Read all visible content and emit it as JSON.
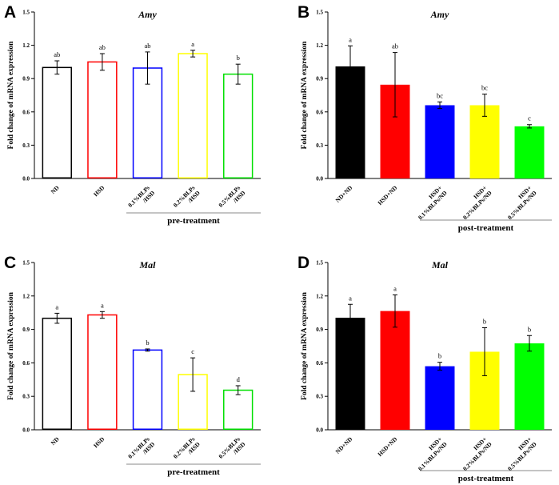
{
  "chart_data": [
    {
      "type": "bar",
      "panel": "A",
      "title": "Amy",
      "ylabel": "Fold change of mRNA expression",
      "ylim": [
        0,
        1.5
      ],
      "yticks": [
        "0.0",
        "0.3",
        "0.6",
        "0.9",
        "1.2",
        "1.5"
      ],
      "xlabel": "pre-treatment",
      "style": "outline",
      "categories": [
        [
          "ND"
        ],
        [
          "HSD"
        ],
        [
          "0.1%BLPs",
          "/HSD"
        ],
        [
          "0.2%BLPs",
          "/HSD"
        ],
        [
          "0.5%BLPs",
          "/HSD"
        ]
      ],
      "values": [
        1.0,
        1.05,
        0.995,
        1.125,
        0.94
      ],
      "errors": [
        0.06,
        0.075,
        0.145,
        0.03,
        0.09
      ],
      "significance": [
        "ab",
        "ab",
        "ab",
        "a",
        "b"
      ],
      "colors": [
        "#000000",
        "#ff0000",
        "#0000ff",
        "#ffff00",
        "#00e000"
      ]
    },
    {
      "type": "bar",
      "panel": "B",
      "title": "Amy",
      "ylabel": "Fold change of mRNA expression",
      "ylim": [
        0,
        1.5
      ],
      "yticks": [
        "0.0",
        "0.3",
        "0.6",
        "0.9",
        "1.2",
        "1.5"
      ],
      "xlabel": "post-treatment",
      "style": "filled",
      "categories": [
        [
          "ND+ND"
        ],
        [
          "HSD+ND"
        ],
        [
          "HSD+",
          "0.1%BLPs/ND"
        ],
        [
          "HSD+",
          "0.2%BLPs/ND"
        ],
        [
          "HSD+",
          "0.5%BLPs/ND"
        ]
      ],
      "values": [
        1.01,
        0.845,
        0.66,
        0.66,
        0.47
      ],
      "errors": [
        0.185,
        0.29,
        0.03,
        0.1,
        0.015
      ],
      "significance": [
        "a",
        "ab",
        "bc",
        "bc",
        "c"
      ],
      "colors": [
        "#000000",
        "#ff0000",
        "#0000ff",
        "#ffff00",
        "#00ff00"
      ]
    },
    {
      "type": "bar",
      "panel": "C",
      "title": "Mal",
      "ylabel": "Fold change of mRNA expression",
      "ylim": [
        0,
        1.5
      ],
      "yticks": [
        "0.0",
        "0.3",
        "0.6",
        "0.9",
        "1.2",
        "1.5"
      ],
      "xlabel": "pre-treatment",
      "style": "outline",
      "categories": [
        [
          "ND"
        ],
        [
          "HSD"
        ],
        [
          "0.1%BLPs",
          "/HSD"
        ],
        [
          "0.2%BLPs",
          "/HSD"
        ],
        [
          "0.5%BLPs",
          "/HSD"
        ]
      ],
      "values": [
        1.0,
        1.03,
        0.715,
        0.495,
        0.355
      ],
      "errors": [
        0.045,
        0.03,
        0.01,
        0.15,
        0.04
      ],
      "significance": [
        "a",
        "a",
        "b",
        "c",
        "d"
      ],
      "colors": [
        "#000000",
        "#ff0000",
        "#0000ff",
        "#ffff00",
        "#00e000"
      ]
    },
    {
      "type": "bar",
      "panel": "D",
      "title": "Mal",
      "ylabel": "Fold change of mRNA expression",
      "ylim": [
        0,
        1.5
      ],
      "yticks": [
        "0.0",
        "0.3",
        "0.6",
        "0.9",
        "1.2",
        "1.5"
      ],
      "xlabel": "post-treatment",
      "style": "filled",
      "categories": [
        [
          "ND+ND"
        ],
        [
          "HSD+ND"
        ],
        [
          "HSD+",
          "0.1%BLPs/ND"
        ],
        [
          "HSD+",
          "0.2%BLPs/ND"
        ],
        [
          "HSD+",
          "0.5%BLPs/ND"
        ]
      ],
      "values": [
        1.005,
        1.065,
        0.57,
        0.7,
        0.775
      ],
      "errors": [
        0.12,
        0.145,
        0.035,
        0.215,
        0.07
      ],
      "significance": [
        "a",
        "a",
        "b",
        "b",
        "b"
      ],
      "colors": [
        "#000000",
        "#ff0000",
        "#0000ff",
        "#ffff00",
        "#00ff00"
      ]
    }
  ]
}
